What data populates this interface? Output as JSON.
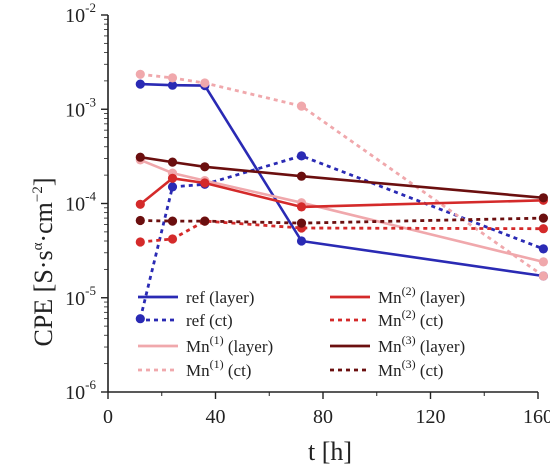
{
  "chart_data": {
    "type": "line",
    "title": "",
    "xlabel": "t [h]",
    "ylabel": "CPE [S·sα·cm−2]",
    "ylabel_parts": {
      "main": "CPE [S·s",
      "sup1": "α",
      "mid": "·cm",
      "sup2": "−2",
      "end": "]"
    },
    "xlim": [
      0,
      160
    ],
    "ylim": [
      1e-06,
      0.01
    ],
    "yscale": "log",
    "x_ticks": [
      0,
      40,
      80,
      120,
      160
    ],
    "y_ticks": [
      {
        "value": 1e-06,
        "base": "10",
        "exp": "-6"
      },
      {
        "value": 1e-05,
        "base": "10",
        "exp": "-5"
      },
      {
        "value": 0.0001,
        "base": "10",
        "exp": "-4"
      },
      {
        "value": 0.001,
        "base": "10",
        "exp": "-3"
      },
      {
        "value": 0.01,
        "base": "10",
        "exp": "-2"
      }
    ],
    "grid": false,
    "legend_position": "bottom-inside",
    "series": [
      {
        "name": "ref (layer)",
        "base": "ref",
        "sup": "",
        "tail": " (layer)",
        "color": "#2a2ab4",
        "style": "solid",
        "points": [
          [
            12,
            0.00185
          ],
          [
            24,
            0.0018
          ],
          [
            36,
            0.00178
          ],
          [
            72,
            4e-05
          ],
          [
            162,
            1.7e-05
          ]
        ]
      },
      {
        "name": "ref (ct)",
        "base": "ref",
        "sup": "",
        "tail": " (ct)",
        "color": "#2a2ab4",
        "style": "dotted",
        "points": [
          [
            12,
            6e-06
          ],
          [
            24,
            0.00015
          ],
          [
            36,
            0.00016
          ],
          [
            72,
            0.00032
          ],
          [
            162,
            3.3e-05
          ]
        ]
      },
      {
        "name": "Mn(1) (layer)",
        "base": "Mn",
        "sup": "(1)",
        "tail": " (layer)",
        "color": "#f0a8ac",
        "style": "solid",
        "points": [
          [
            12,
            0.00029
          ],
          [
            24,
            0.00021
          ],
          [
            36,
            0.000175
          ],
          [
            72,
            0.000102
          ],
          [
            162,
            2.4e-05
          ]
        ]
      },
      {
        "name": "Mn(1) (ct)",
        "base": "Mn",
        "sup": "(1)",
        "tail": " (ct)",
        "color": "#f0a8ac",
        "style": "dotted",
        "points": [
          [
            12,
            0.00235
          ],
          [
            24,
            0.00215
          ],
          [
            36,
            0.0019
          ],
          [
            72,
            0.00108
          ],
          [
            162,
            1.7e-05
          ]
        ]
      },
      {
        "name": "Mn(2) (layer)",
        "base": "Mn",
        "sup": "(2)",
        "tail": " (layer)",
        "color": "#d42a2a",
        "style": "solid",
        "points": [
          [
            12,
            9.8e-05
          ],
          [
            24,
            0.000185
          ],
          [
            36,
            0.000165
          ],
          [
            72,
            9.2e-05
          ],
          [
            162,
            0.000108
          ]
        ]
      },
      {
        "name": "Mn(2) (ct)",
        "base": "Mn",
        "sup": "(2)",
        "tail": " (ct)",
        "color": "#d42a2a",
        "style": "dotted",
        "points": [
          [
            12,
            3.9e-05
          ],
          [
            24,
            4.2e-05
          ],
          [
            36,
            6.5e-05
          ],
          [
            72,
            5.5e-05
          ],
          [
            162,
            5.4e-05
          ]
        ]
      },
      {
        "name": "Mn(3) (layer)",
        "base": "Mn",
        "sup": "(3)",
        "tail": " (layer)",
        "color": "#6b0f0f",
        "style": "solid",
        "points": [
          [
            12,
            0.00031
          ],
          [
            24,
            0.000275
          ],
          [
            36,
            0.000245
          ],
          [
            72,
            0.000195
          ],
          [
            162,
            0.000115
          ]
        ]
      },
      {
        "name": "Mn(3) (ct)",
        "base": "Mn",
        "sup": "(3)",
        "tail": " (ct)",
        "color": "#6b0f0f",
        "style": "dotted",
        "points": [
          [
            12,
            6.6e-05
          ],
          [
            24,
            6.5e-05
          ],
          [
            36,
            6.5e-05
          ],
          [
            72,
            6.2e-05
          ],
          [
            162,
            7e-05
          ]
        ]
      }
    ]
  }
}
